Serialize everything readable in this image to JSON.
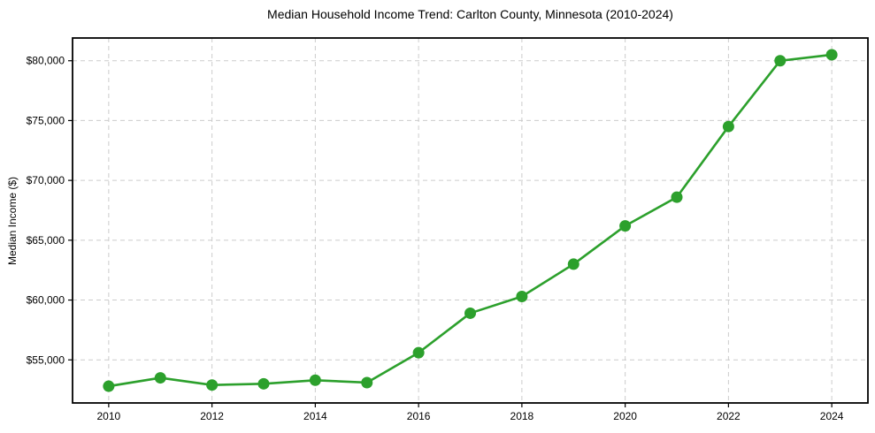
{
  "chart_data": {
    "type": "line",
    "title": "Median Household Income Trend: Carlton County, Minnesota (2010-2024)",
    "xlabel": "",
    "ylabel": "Median Income ($)",
    "x": [
      2010,
      2011,
      2012,
      2013,
      2014,
      2015,
      2016,
      2017,
      2018,
      2019,
      2020,
      2021,
      2022,
      2023,
      2024
    ],
    "values": [
      52800,
      53500,
      52900,
      53000,
      53300,
      53100,
      55600,
      58900,
      60300,
      63000,
      66200,
      68600,
      74500,
      80000,
      80500
    ],
    "xticks": [
      2010,
      2012,
      2014,
      2016,
      2018,
      2020,
      2022,
      2024
    ],
    "xtick_labels": [
      "2010",
      "2012",
      "2014",
      "2016",
      "2018",
      "2020",
      "2022",
      "2024"
    ],
    "yticks": [
      55000,
      60000,
      65000,
      70000,
      75000,
      80000
    ],
    "ytick_labels": [
      "$55,000",
      "$60,000",
      "$65,000",
      "$70,000",
      "$75,000",
      "$80,000"
    ],
    "xlim": [
      2009.3,
      2024.7
    ],
    "ylim": [
      51400,
      81900
    ],
    "grid": true,
    "grid_style": "dashed",
    "legend": false,
    "line_color": "#2ca02c",
    "marker": "circle",
    "marker_color": "#2ca02c",
    "grid_color": "#cccccc",
    "spine_color": "#000000",
    "background_color": "#ffffff"
  }
}
